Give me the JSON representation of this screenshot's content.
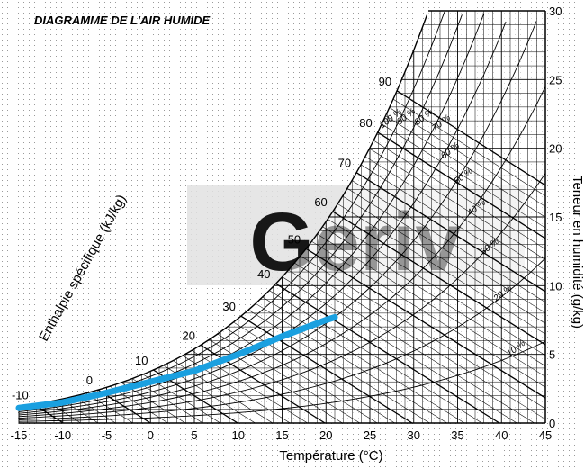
{
  "chart_data": {
    "type": "line",
    "title": "DIAGRAMME DE L'AIR HUMIDE",
    "xlabel": "Température (°C)",
    "ylabel": "Teneur en humidité (g/kg)",
    "enthalpy_label": "Enthalpie spécifique (kJ/kg)",
    "watermark": "Geriv",
    "xlim": [
      -15,
      45
    ],
    "ylim": [
      0,
      30
    ],
    "x_ticks": [
      -15,
      -10,
      -5,
      0,
      5,
      10,
      15,
      20,
      25,
      30,
      35,
      40,
      45
    ],
    "y_ticks": [
      0,
      5,
      10,
      15,
      20,
      25,
      30
    ],
    "enthalpy_ticks": [
      -10,
      0,
      10,
      20,
      30,
      40,
      50,
      60,
      70,
      80,
      90
    ],
    "relative_humidity_curves": [
      {
        "label": "10 %",
        "rh": 0.1
      },
      {
        "label": "20 %",
        "rh": 0.2
      },
      {
        "label": "30 %",
        "rh": 0.3
      },
      {
        "label": "40 %",
        "rh": 0.4
      },
      {
        "label": "50 %",
        "rh": 0.5
      },
      {
        "label": "60 %",
        "rh": 0.6
      },
      {
        "label": "70 %",
        "rh": 0.7
      },
      {
        "label": "80 %",
        "rh": 0.8
      },
      {
        "label": "90 %",
        "rh": 0.9
      },
      {
        "label": "100 %",
        "rh": 1.0
      }
    ],
    "series": [
      {
        "color": "#1aa0e0",
        "x": [
          -15,
          -10,
          -5,
          0,
          5,
          10,
          15,
          20,
          21
        ],
        "y": [
          1.1,
          1.5,
          2.2,
          3.0,
          3.8,
          5.0,
          6.3,
          7.5,
          7.7
        ]
      }
    ],
    "grid": true
  }
}
